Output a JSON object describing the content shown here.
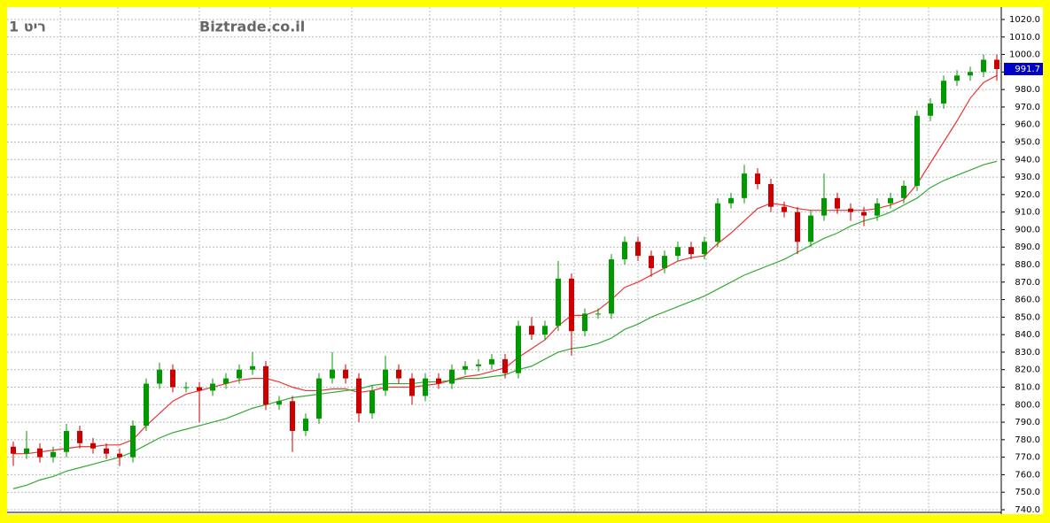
{
  "chart_data": {
    "type": "candlestick",
    "title": "Biztrade.co.il",
    "subtitle": "ריט 1",
    "up_color": "#009900",
    "down_color": "#cc0000",
    "open": [
      776,
      772,
      775,
      770,
      773,
      785,
      778,
      775,
      772,
      770,
      788,
      812,
      820,
      810,
      810,
      808,
      812,
      815,
      820,
      822,
      800,
      802,
      785,
      792,
      815,
      820,
      815,
      795,
      808,
      820,
      815,
      805,
      815,
      812,
      820,
      822,
      823,
      826,
      818,
      845,
      840,
      845,
      872,
      842,
      852,
      852,
      883,
      893,
      885,
      878,
      885,
      890,
      886,
      893,
      915,
      918,
      932,
      926,
      913,
      910,
      893,
      908,
      918,
      912,
      910,
      908,
      915,
      918,
      925,
      965,
      972,
      985,
      988,
      990,
      997
    ],
    "high": [
      779,
      785,
      778,
      776,
      789,
      788,
      781,
      778,
      775,
      791,
      815,
      824,
      823,
      813,
      813,
      815,
      818,
      823,
      830,
      825,
      805,
      805,
      795,
      818,
      830,
      823,
      818,
      811,
      828,
      823,
      818,
      818,
      818,
      823,
      825,
      826,
      829,
      829,
      848,
      850,
      848,
      882,
      875,
      855,
      855,
      886,
      896,
      896,
      888,
      888,
      893,
      893,
      896,
      918,
      921,
      937,
      935,
      929,
      916,
      913,
      911,
      932,
      921,
      915,
      913,
      918,
      921,
      928,
      968,
      975,
      988,
      991,
      993,
      1000,
      1000
    ],
    "low": [
      765,
      769,
      767,
      767,
      770,
      775,
      772,
      769,
      765,
      767,
      785,
      809,
      807,
      807,
      790,
      805,
      809,
      812,
      817,
      797,
      797,
      773,
      782,
      789,
      812,
      812,
      790,
      792,
      805,
      812,
      800,
      802,
      809,
      809,
      817,
      819,
      820,
      815,
      815,
      837,
      837,
      842,
      828,
      839,
      849,
      849,
      880,
      882,
      873,
      875,
      882,
      883,
      883,
      890,
      912,
      915,
      923,
      910,
      907,
      886,
      890,
      905,
      909,
      905,
      902,
      905,
      912,
      915,
      922,
      962,
      969,
      982,
      985,
      987,
      985
    ],
    "close": [
      772,
      775,
      770,
      773,
      785,
      778,
      775,
      772,
      770,
      788,
      812,
      820,
      810,
      810,
      808,
      812,
      815,
      820,
      822,
      800,
      802,
      785,
      792,
      815,
      820,
      815,
      795,
      808,
      820,
      815,
      805,
      815,
      812,
      820,
      822,
      823,
      826,
      818,
      845,
      840,
      845,
      872,
      842,
      852,
      852,
      883,
      893,
      885,
      878,
      885,
      890,
      886,
      893,
      915,
      918,
      932,
      926,
      913,
      910,
      893,
      908,
      918,
      912,
      910,
      908,
      915,
      918,
      925,
      965,
      972,
      985,
      988,
      990,
      997,
      991.7
    ],
    "lines": [
      {
        "color": "#ee3333",
        "values": [
          772,
          772,
          773,
          774,
          775,
          776,
          776,
          777,
          777,
          780,
          788,
          795,
          802,
          806,
          808,
          810,
          812,
          814,
          815,
          815,
          813,
          810,
          808,
          808,
          809,
          809,
          807,
          808,
          810,
          810,
          810,
          811,
          812,
          814,
          816,
          817,
          819,
          821,
          827,
          832,
          837,
          845,
          851,
          851,
          854,
          860,
          867,
          870,
          874,
          878,
          882,
          884,
          885,
          892,
          898,
          905,
          912,
          915,
          914,
          912,
          911,
          911,
          911,
          911,
          911,
          912,
          914,
          917,
          926,
          938,
          950,
          962,
          975,
          984,
          988
        ]
      },
      {
        "color": "#33aa33",
        "values": [
          752,
          754,
          757,
          759,
          762,
          764,
          766,
          768,
          770,
          773,
          777,
          781,
          784,
          786,
          788,
          790,
          792,
          795,
          798,
          800,
          802,
          804,
          805,
          806,
          807,
          808,
          809,
          811,
          812,
          812,
          812,
          813,
          813,
          814,
          815,
          815,
          816,
          817,
          820,
          822,
          826,
          830,
          832,
          833,
          835,
          838,
          843,
          846,
          850,
          853,
          856,
          859,
          862,
          866,
          870,
          874,
          877,
          880,
          883,
          887,
          891,
          895,
          898,
          902,
          905,
          907,
          910,
          914,
          918,
          924,
          928,
          931,
          934,
          937,
          939
        ]
      }
    ],
    "ylim": [
      740,
      1020
    ],
    "yticks": [
      {
        "value": 740,
        "label": "740.0"
      },
      {
        "value": 750,
        "label": "750.0"
      },
      {
        "value": 760,
        "label": "760.0"
      },
      {
        "value": 770,
        "label": "770.0"
      },
      {
        "value": 780,
        "label": "780.0"
      },
      {
        "value": 790,
        "label": "790.0"
      },
      {
        "value": 800,
        "label": "800.0"
      },
      {
        "value": 810,
        "label": "810.0"
      },
      {
        "value": 820,
        "label": "820.0"
      },
      {
        "value": 830,
        "label": "830.0"
      },
      {
        "value": 840,
        "label": "840.0"
      },
      {
        "value": 850,
        "label": "850.0"
      },
      {
        "value": 860,
        "label": "860.0"
      },
      {
        "value": 870,
        "label": "870.0"
      },
      {
        "value": 880,
        "label": "880.0"
      },
      {
        "value": 890,
        "label": "890.0"
      },
      {
        "value": 900,
        "label": "900.0"
      },
      {
        "value": 910,
        "label": "910.0"
      },
      {
        "value": 920,
        "label": "920.0"
      },
      {
        "value": 930,
        "label": "930.0"
      },
      {
        "value": 940,
        "label": "940.0"
      },
      {
        "value": 950,
        "label": "950.0"
      },
      {
        "value": 960,
        "label": "960.0"
      },
      {
        "value": 970,
        "label": "970.0"
      },
      {
        "value": 980,
        "label": "980.0"
      },
      {
        "value": 990,
        "label": "990.0"
      },
      {
        "value": 1000,
        "label": "1000.0"
      },
      {
        "value": 1010,
        "label": "1010.0"
      },
      {
        "value": 1020,
        "label": "1020.0"
      }
    ],
    "grid": true
  }
}
